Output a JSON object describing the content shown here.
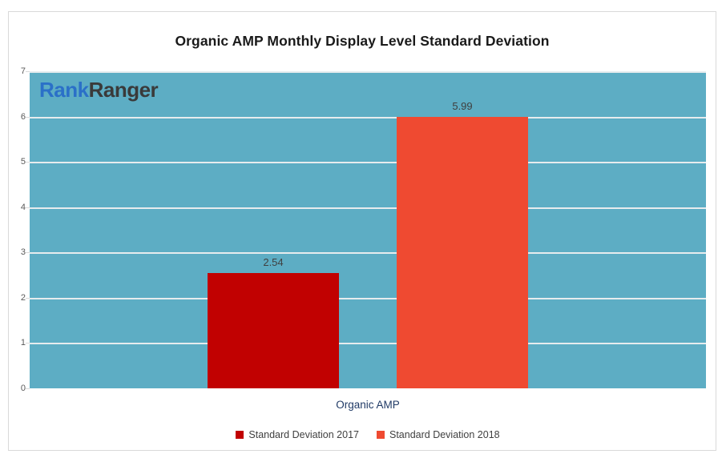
{
  "logo": {
    "parts": [
      {
        "text": "Rank",
        "color": "#2b70c8"
      },
      {
        "text": "Ranger",
        "color": "#3a3a3a"
      }
    ]
  },
  "colors": {
    "plot_background": "#5dadc4",
    "gridline": "#e6ecee",
    "frame_border": "#d9d9d9",
    "x_label_text": "#203a66",
    "series_2017": "#c10101",
    "series_2018": "#ef4a31"
  },
  "chart_data": {
    "type": "bar",
    "title": "Organic AMP Monthly Display Level Standard Deviation",
    "categories": [
      "Organic AMP"
    ],
    "series": [
      {
        "name": "Standard Deviation 2017",
        "values": [
          2.54
        ],
        "data_labels": [
          "2.54"
        ],
        "color": "#c10101"
      },
      {
        "name": "Standard Deviation 2018",
        "values": [
          5.99
        ],
        "data_labels": [
          "5.99"
        ],
        "color": "#ef4a31"
      }
    ],
    "ylim": [
      0,
      7
    ],
    "yticks": [
      0,
      1,
      2,
      3,
      4,
      5,
      6,
      7
    ],
    "grid": true,
    "legend_position": "bottom",
    "plot_background": "#5dadc4",
    "watermark": "RankRanger"
  }
}
